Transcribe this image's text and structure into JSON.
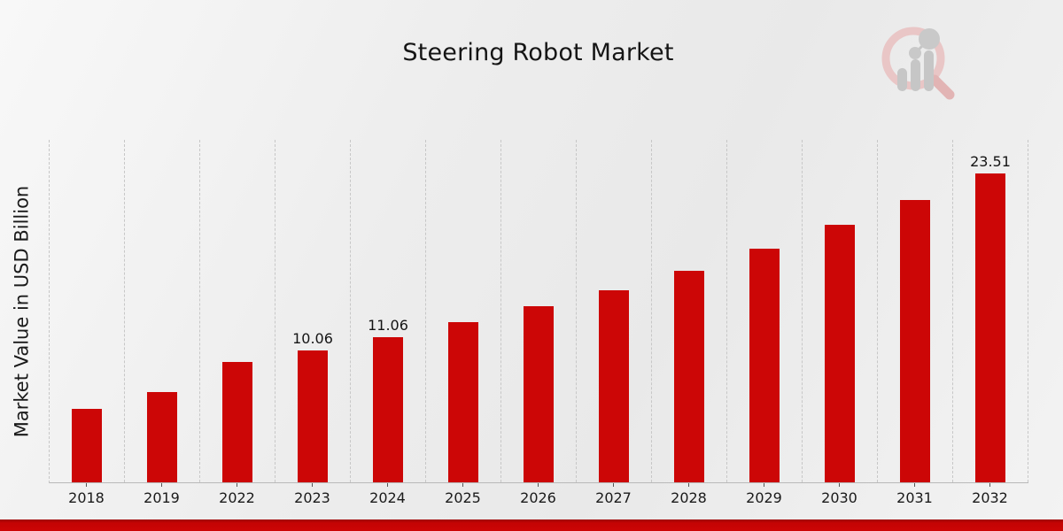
{
  "page": {
    "title": "Steering Robot Market"
  },
  "chart_data": {
    "type": "bar",
    "title": "Steering Robot Market",
    "xlabel": "",
    "ylabel": "Market Value in USD Billion",
    "categories": [
      "2018",
      "2019",
      "2022",
      "2023",
      "2024",
      "2025",
      "2026",
      "2027",
      "2028",
      "2029",
      "2030",
      "2031",
      "2032"
    ],
    "values": [
      5.58,
      6.89,
      9.14,
      10.06,
      11.06,
      12.18,
      13.39,
      14.65,
      16.15,
      17.8,
      19.66,
      21.52,
      23.51
    ],
    "data_labels": {
      "2023": "10.06",
      "2024": "11.06",
      "2032": "23.51"
    },
    "ylim": [
      0,
      26.1
    ],
    "grid": "vertical-dashed",
    "legend": "none",
    "bar_color": "#cc0606",
    "gridline_color": "#c7c7c7",
    "axis_line_color": "#b9b9b9"
  },
  "footer": {
    "band_color": "#c40404"
  },
  "logo": {
    "icon": "magnifier-bar-chart-watermark",
    "ring_color": "#e8c2c2",
    "bars_color": "#c3c3c3"
  }
}
